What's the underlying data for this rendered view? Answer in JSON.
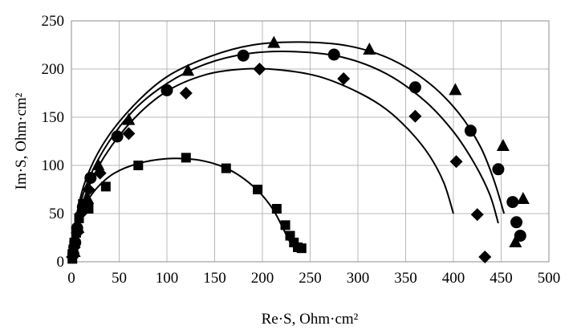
{
  "chart_data": {
    "type": "scatter",
    "title": "",
    "xlabel": "Re·S, Ohm·cm²",
    "ylabel": "Im·S, Ohm·cm²",
    "xlim": [
      0,
      500
    ],
    "ylim": [
      0,
      250
    ],
    "xticks": [
      0,
      50,
      100,
      150,
      200,
      250,
      300,
      350,
      400,
      450,
      500
    ],
    "yticks": [
      0,
      50,
      100,
      150,
      200,
      250
    ],
    "grid": true,
    "legend": "none",
    "series": [
      {
        "marker": "square",
        "points": [
          [
            1,
            3
          ],
          [
            1,
            8
          ],
          [
            2,
            13
          ],
          [
            3,
            20
          ],
          [
            5,
            30
          ],
          [
            8,
            45
          ],
          [
            12,
            60
          ],
          [
            18,
            55
          ],
          [
            36,
            78
          ],
          [
            70,
            100
          ],
          [
            120,
            108
          ],
          [
            162,
            97
          ],
          [
            195,
            75
          ],
          [
            215,
            55
          ],
          [
            224,
            38
          ],
          [
            229,
            27
          ],
          [
            233,
            20
          ],
          [
            237,
            15
          ],
          [
            241,
            14
          ]
        ],
        "fit": [
          [
            0,
            2
          ],
          [
            3,
            25
          ],
          [
            8,
            45
          ],
          [
            16,
            62
          ],
          [
            28,
            78
          ],
          [
            45,
            92
          ],
          [
            70,
            102
          ],
          [
            100,
            107
          ],
          [
            130,
            106
          ],
          [
            155,
            100
          ],
          [
            175,
            90
          ],
          [
            195,
            74
          ],
          [
            210,
            56
          ],
          [
            220,
            38
          ],
          [
            228,
            22
          ],
          [
            235,
            13
          ]
        ]
      },
      {
        "marker": "diamond",
        "points": [
          [
            1,
            5
          ],
          [
            3,
            15
          ],
          [
            6,
            30
          ],
          [
            10,
            50
          ],
          [
            18,
            75
          ],
          [
            30,
            92
          ],
          [
            60,
            133
          ],
          [
            120,
            175
          ],
          [
            197,
            200
          ],
          [
            285,
            190
          ],
          [
            360,
            151
          ],
          [
            403,
            104
          ],
          [
            425,
            49
          ],
          [
            433,
            5
          ]
        ],
        "fit": [
          [
            0,
            0
          ],
          [
            5,
            35
          ],
          [
            15,
            70
          ],
          [
            35,
            110
          ],
          [
            65,
            148
          ],
          [
            100,
            177
          ],
          [
            140,
            194
          ],
          [
            180,
            200
          ],
          [
            220,
            199
          ],
          [
            260,
            192
          ],
          [
            300,
            176
          ],
          [
            330,
            158
          ],
          [
            355,
            135
          ],
          [
            375,
            110
          ],
          [
            390,
            82
          ],
          [
            400,
            50
          ]
        ]
      },
      {
        "marker": "circle",
        "points": [
          [
            2,
            8
          ],
          [
            4,
            20
          ],
          [
            6,
            35
          ],
          [
            12,
            57
          ],
          [
            20,
            87
          ],
          [
            48,
            130
          ],
          [
            100,
            178
          ],
          [
            180,
            214
          ],
          [
            275,
            215
          ],
          [
            360,
            181
          ],
          [
            418,
            136
          ],
          [
            447,
            96
          ],
          [
            462,
            62
          ],
          [
            466,
            41
          ],
          [
            470,
            27
          ]
        ],
        "fit": [
          [
            0,
            0
          ],
          [
            5,
            40
          ],
          [
            15,
            78
          ],
          [
            35,
            118
          ],
          [
            65,
            157
          ],
          [
            100,
            185
          ],
          [
            140,
            205
          ],
          [
            185,
            216
          ],
          [
            235,
            218
          ],
          [
            285,
            212
          ],
          [
            330,
            195
          ],
          [
            370,
            167
          ],
          [
            400,
            135
          ],
          [
            422,
            102
          ],
          [
            438,
            70
          ],
          [
            447,
            40
          ]
        ]
      },
      {
        "marker": "triangle",
        "points": [
          [
            3,
            10
          ],
          [
            7,
            35
          ],
          [
            12,
            58
          ],
          [
            17,
            65
          ],
          [
            28,
            100
          ],
          [
            60,
            147
          ],
          [
            122,
            198
          ],
          [
            212,
            227
          ],
          [
            312,
            220
          ],
          [
            402,
            178
          ],
          [
            452,
            120
          ],
          [
            465,
            20
          ],
          [
            473,
            65
          ]
        ],
        "fit": [
          [
            0,
            0
          ],
          [
            5,
            45
          ],
          [
            15,
            85
          ],
          [
            35,
            125
          ],
          [
            65,
            162
          ],
          [
            100,
            192
          ],
          [
            145,
            213
          ],
          [
            190,
            225
          ],
          [
            240,
            228
          ],
          [
            290,
            224
          ],
          [
            335,
            210
          ],
          [
            375,
            185
          ],
          [
            405,
            155
          ],
          [
            428,
            120
          ],
          [
            443,
            83
          ],
          [
            453,
            50
          ]
        ]
      }
    ]
  }
}
